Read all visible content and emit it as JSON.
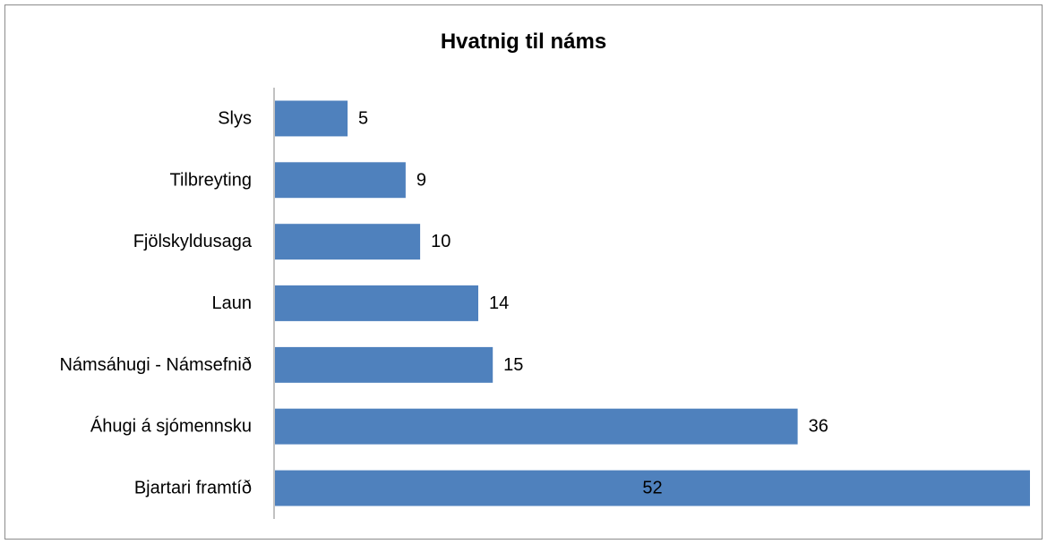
{
  "chart_data": {
    "type": "bar",
    "orientation": "horizontal",
    "title": "Hvatnig til náms",
    "categories": [
      "Slys",
      "Tilbreyting",
      "Fjölskyldusaga",
      "Laun",
      "Námsáhugi - Námsefnið",
      "Áhugi á sjómennsku",
      "Bjartari framtíð"
    ],
    "values": [
      5,
      9,
      10,
      14,
      15,
      36,
      52
    ],
    "data_labels": [
      "5",
      "9",
      "10",
      "14",
      "15",
      "36",
      "52"
    ],
    "xlim": [
      0,
      52
    ],
    "grid": false,
    "legend": "none",
    "bar_color": "#4f81bd"
  }
}
